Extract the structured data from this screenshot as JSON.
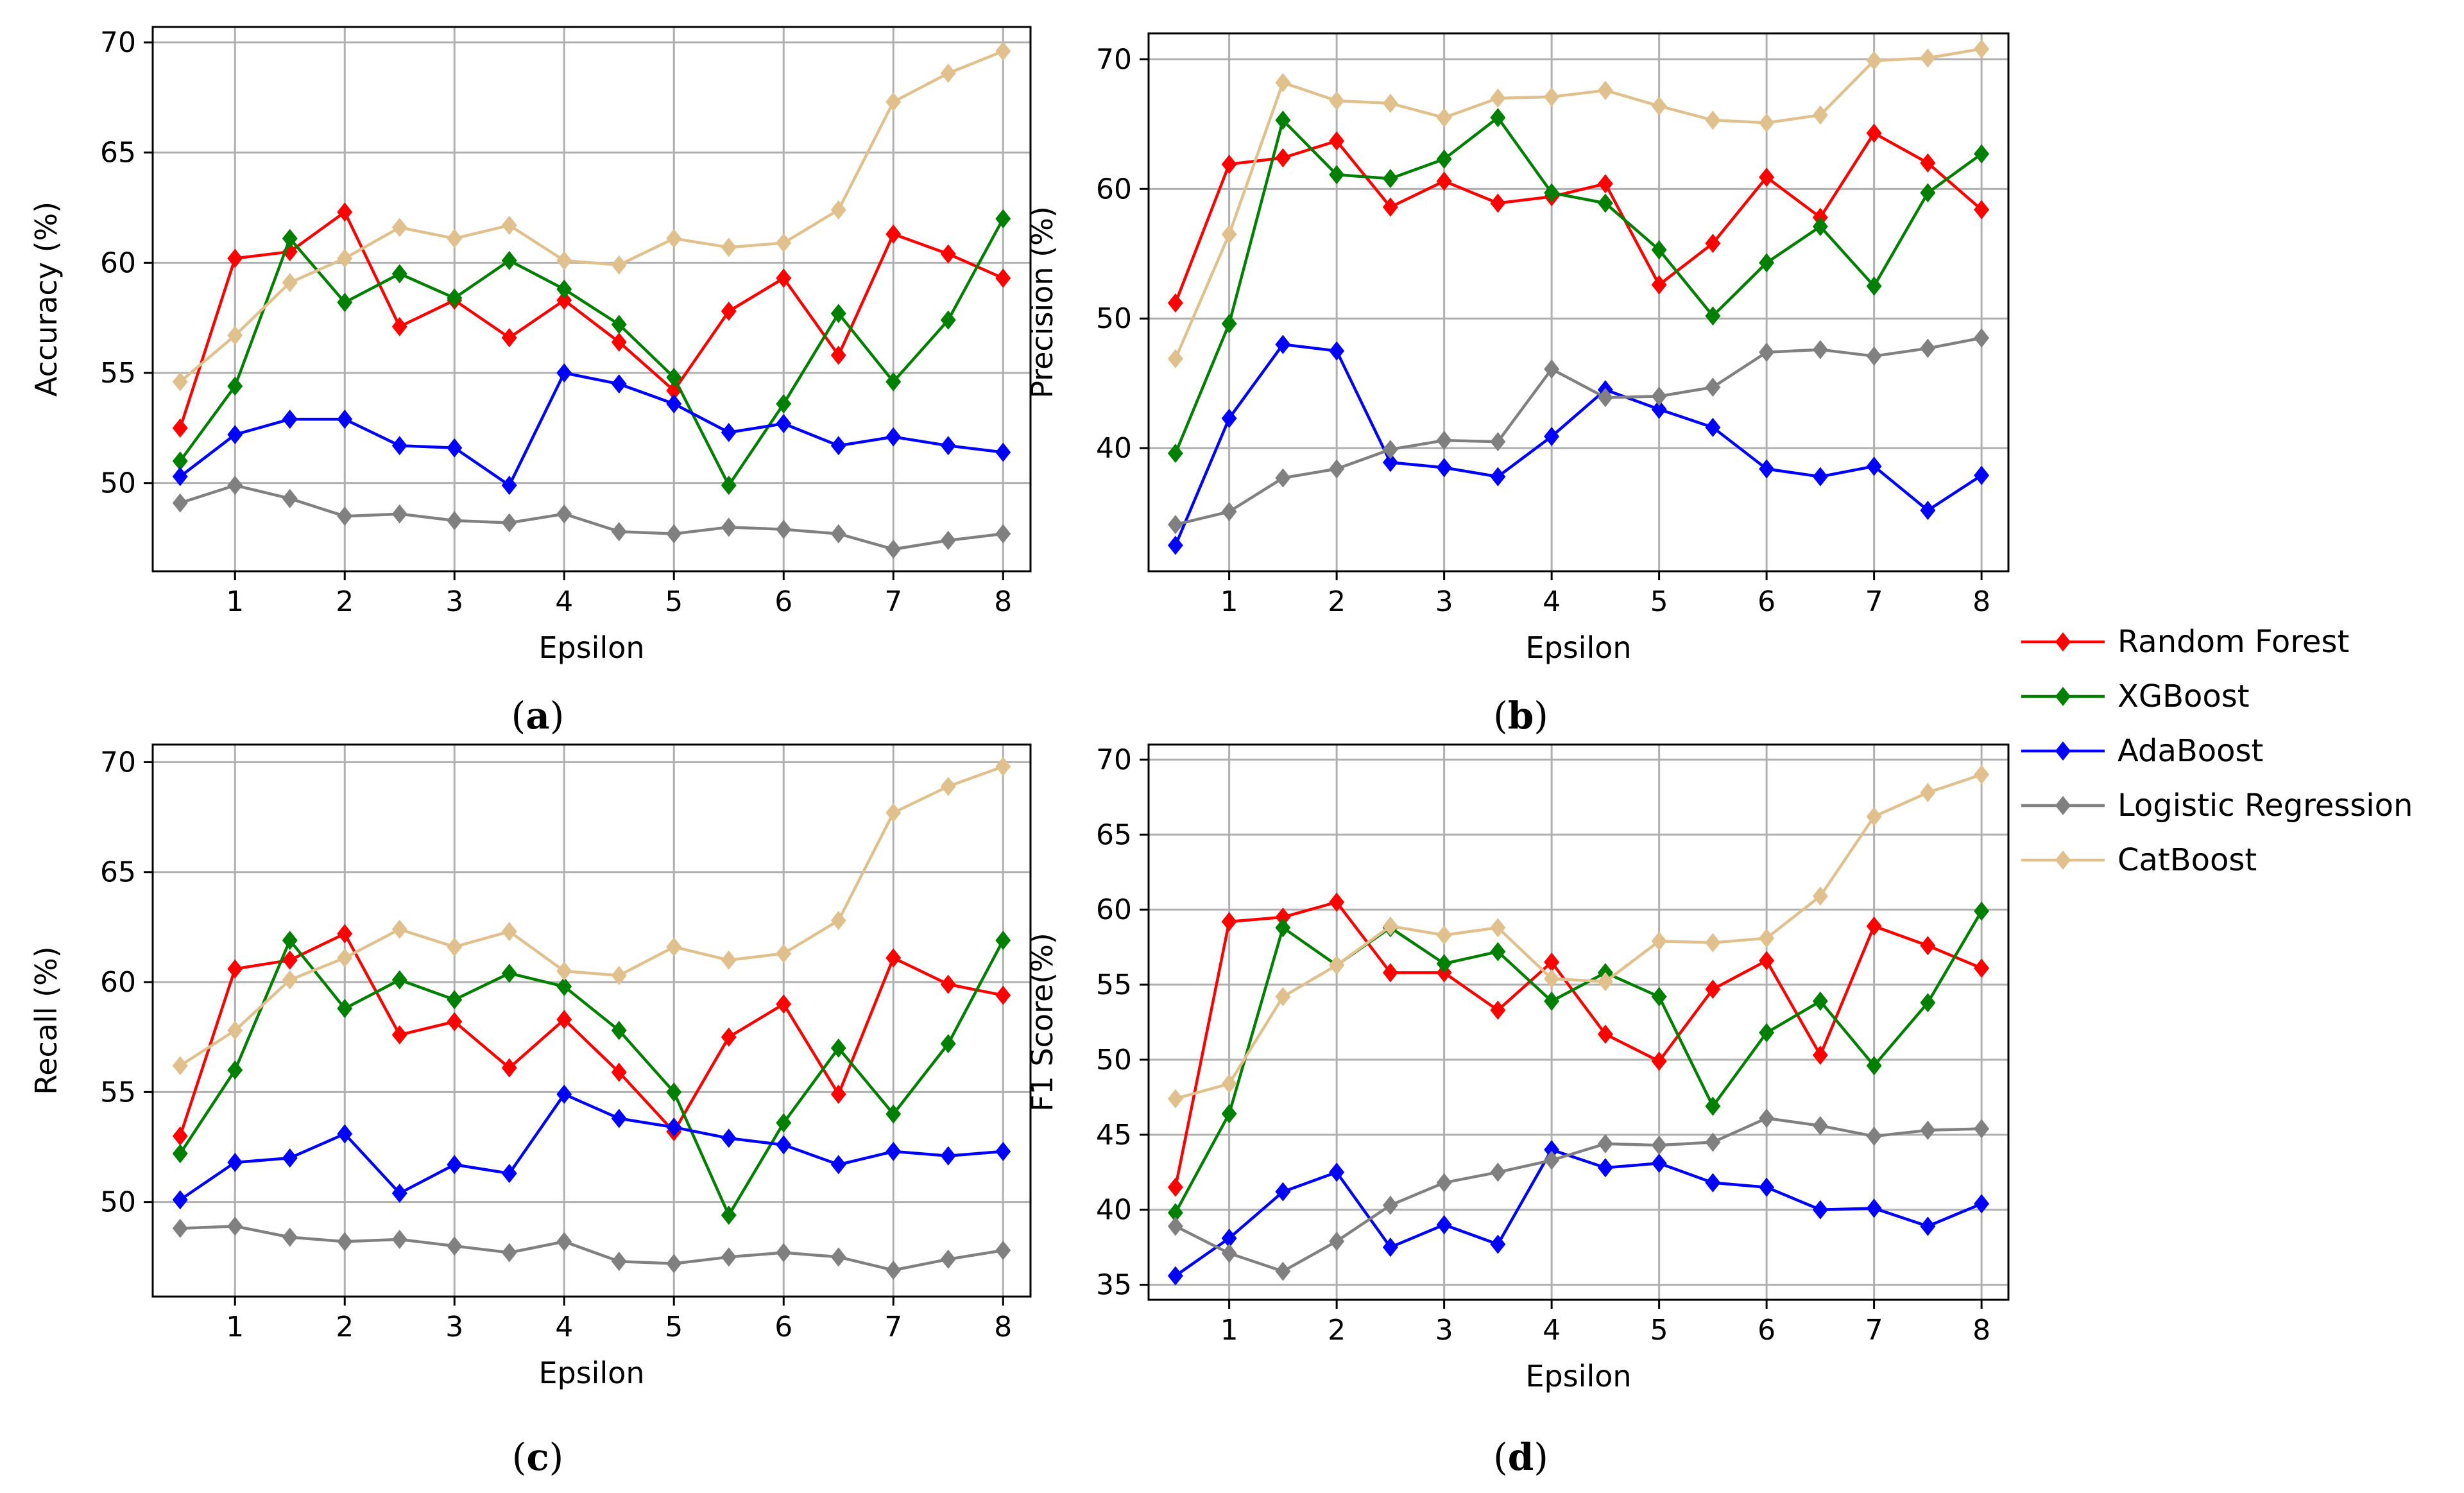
{
  "colors": {
    "Random Forest": "#ff0000",
    "XGBoost": "#008000",
    "AdaBoost": "#0000ff",
    "Logistic Regression": "#808080",
    "CatBoost": "#e0c08c",
    "grid": "#b0b0b0",
    "axis": "#000000"
  },
  "legend": {
    "placement": "right-center",
    "entries": [
      "Random Forest",
      "XGBoost",
      "AdaBoost",
      "Logistic Regression",
      "CatBoost"
    ]
  },
  "chart_data": [
    {
      "type": "line",
      "caption_letter": "a",
      "caption_open": "(",
      "caption_close": ")",
      "xlabel": "Epsilon",
      "ylabel": "Accuracy (%)",
      "xlim": [
        0.25,
        8.25
      ],
      "ylim": [
        46.0,
        70.7
      ],
      "xticks": [
        1,
        2,
        3,
        4,
        5,
        6,
        7,
        8
      ],
      "yticks": [
        50,
        55,
        60,
        65,
        70
      ],
      "grid": true,
      "x": [
        0.5,
        1,
        1.5,
        2,
        2.5,
        3,
        3.5,
        4,
        4.5,
        5,
        5.5,
        6,
        6.5,
        7,
        7.5,
        8
      ],
      "series": [
        {
          "name": "Random Forest",
          "values": [
            52.5,
            60.2,
            60.5,
            62.3,
            57.1,
            58.3,
            56.6,
            58.3,
            56.4,
            54.2,
            57.8,
            59.3,
            55.8,
            61.3,
            60.4,
            59.3
          ]
        },
        {
          "name": "XGBoost",
          "values": [
            51.0,
            54.4,
            61.1,
            58.2,
            59.5,
            58.4,
            60.1,
            58.8,
            57.2,
            54.8,
            49.9,
            53.6,
            57.7,
            54.6,
            57.4,
            62.0
          ]
        },
        {
          "name": "AdaBoost",
          "values": [
            50.3,
            52.2,
            52.9,
            52.9,
            51.7,
            51.6,
            49.9,
            55.0,
            54.5,
            53.6,
            52.3,
            52.7,
            51.7,
            52.1,
            51.7,
            51.4
          ]
        },
        {
          "name": "Logistic Regression",
          "values": [
            49.1,
            49.9,
            49.3,
            48.5,
            48.6,
            48.3,
            48.2,
            48.6,
            47.8,
            47.7,
            48.0,
            47.9,
            47.7,
            47.0,
            47.4,
            47.7
          ]
        },
        {
          "name": "CatBoost",
          "values": [
            54.6,
            56.7,
            59.1,
            60.2,
            61.6,
            61.1,
            61.7,
            60.1,
            59.9,
            61.1,
            60.7,
            60.9,
            62.4,
            67.3,
            68.6,
            69.6
          ]
        }
      ]
    },
    {
      "type": "line",
      "caption_letter": "b",
      "caption_open": "(",
      "caption_close": ")",
      "xlabel": "Epsilon",
      "ylabel": "Precision (%)",
      "xlim": [
        0.25,
        8.25
      ],
      "ylim": [
        30.5,
        72.0
      ],
      "xticks": [
        1,
        2,
        3,
        4,
        5,
        6,
        7,
        8
      ],
      "yticks": [
        40,
        50,
        60,
        70
      ],
      "grid": true,
      "x": [
        0.5,
        1,
        1.5,
        2,
        2.5,
        3,
        3.5,
        4,
        4.5,
        5,
        5.5,
        6,
        6.5,
        7,
        7.5,
        8
      ],
      "series": [
        {
          "name": "Random Forest",
          "values": [
            51.2,
            61.9,
            62.4,
            63.7,
            58.6,
            60.6,
            58.9,
            59.4,
            60.4,
            52.6,
            55.8,
            60.9,
            57.8,
            64.3,
            62.0,
            58.4
          ]
        },
        {
          "name": "XGBoost",
          "values": [
            39.6,
            49.6,
            65.3,
            61.1,
            60.8,
            62.3,
            65.5,
            59.7,
            58.9,
            55.3,
            50.2,
            54.3,
            57.1,
            52.5,
            59.7,
            62.7
          ]
        },
        {
          "name": "AdaBoost",
          "values": [
            32.5,
            42.3,
            48.0,
            47.5,
            38.9,
            38.5,
            37.8,
            40.9,
            44.5,
            43.0,
            41.6,
            38.4,
            37.8,
            38.6,
            35.2,
            37.9
          ]
        },
        {
          "name": "Logistic Regression",
          "values": [
            34.1,
            35.1,
            37.7,
            38.4,
            39.9,
            40.6,
            40.5,
            46.1,
            43.9,
            44.0,
            44.7,
            47.4,
            47.6,
            47.1,
            47.7,
            48.5
          ]
        },
        {
          "name": "CatBoost",
          "values": [
            46.9,
            56.5,
            68.2,
            66.8,
            66.6,
            65.5,
            67.0,
            67.1,
            67.6,
            66.4,
            65.3,
            65.1,
            65.7,
            69.9,
            70.1,
            70.8
          ]
        }
      ]
    },
    {
      "type": "line",
      "caption_letter": "c",
      "caption_open": "(",
      "caption_close": ")",
      "xlabel": "Epsilon",
      "ylabel": "Recall (%)",
      "xlim": [
        0.25,
        8.25
      ],
      "ylim": [
        45.7,
        70.8
      ],
      "xticks": [
        1,
        2,
        3,
        4,
        5,
        6,
        7,
        8
      ],
      "yticks": [
        50,
        55,
        60,
        65,
        70
      ],
      "grid": true,
      "x": [
        0.5,
        1,
        1.5,
        2,
        2.5,
        3,
        3.5,
        4,
        4.5,
        5,
        5.5,
        6,
        6.5,
        7,
        7.5,
        8
      ],
      "series": [
        {
          "name": "Random Forest",
          "values": [
            53.0,
            60.6,
            61.0,
            62.2,
            57.6,
            58.2,
            56.1,
            58.3,
            55.9,
            53.2,
            57.5,
            59.0,
            54.9,
            61.1,
            59.9,
            59.4
          ]
        },
        {
          "name": "XGBoost",
          "values": [
            52.2,
            56.0,
            61.9,
            58.8,
            60.1,
            59.2,
            60.4,
            59.8,
            57.8,
            55.0,
            49.4,
            53.6,
            57.0,
            54.0,
            57.2,
            61.9
          ]
        },
        {
          "name": "AdaBoost",
          "values": [
            50.1,
            51.8,
            52.0,
            53.1,
            50.4,
            51.7,
            51.3,
            54.9,
            53.8,
            53.4,
            52.9,
            52.6,
            51.7,
            52.3,
            52.1,
            52.3
          ]
        },
        {
          "name": "Logistic Regression",
          "values": [
            48.8,
            48.9,
            48.4,
            48.2,
            48.3,
            48.0,
            47.7,
            48.2,
            47.3,
            47.2,
            47.5,
            47.7,
            47.5,
            46.9,
            47.4,
            47.8
          ]
        },
        {
          "name": "CatBoost",
          "values": [
            56.2,
            57.8,
            60.1,
            61.1,
            62.4,
            61.6,
            62.3,
            60.5,
            60.3,
            61.6,
            61.0,
            61.3,
            62.8,
            67.7,
            68.9,
            69.8
          ]
        }
      ]
    },
    {
      "type": "line",
      "caption_letter": "d",
      "caption_open": "(",
      "caption_close": ")",
      "xlabel": "Epsilon",
      "ylabel": "F1 Score(%)",
      "xlim": [
        0.25,
        8.25
      ],
      "ylim": [
        34.0,
        71.0
      ],
      "xticks": [
        1,
        2,
        3,
        4,
        5,
        6,
        7,
        8
      ],
      "yticks": [
        35,
        40,
        45,
        50,
        55,
        60,
        65,
        70
      ],
      "grid": true,
      "x": [
        0.5,
        1,
        1.5,
        2,
        2.5,
        3,
        3.5,
        4,
        4.5,
        5,
        5.5,
        6,
        6.5,
        7,
        7.5,
        8
      ],
      "series": [
        {
          "name": "Random Forest",
          "values": [
            41.5,
            59.2,
            59.5,
            60.5,
            55.8,
            55.8,
            53.3,
            56.5,
            51.7,
            49.9,
            54.7,
            56.6,
            50.3,
            58.9,
            57.6,
            56.1
          ]
        },
        {
          "name": "XGBoost",
          "values": [
            39.8,
            46.4,
            58.8,
            56.3,
            58.8,
            56.4,
            57.2,
            53.9,
            55.8,
            54.2,
            46.9,
            51.8,
            53.9,
            49.6,
            53.8,
            59.9
          ]
        },
        {
          "name": "AdaBoost",
          "values": [
            35.6,
            38.1,
            41.2,
            42.5,
            37.5,
            39.0,
            37.7,
            44.0,
            42.8,
            43.1,
            41.8,
            41.5,
            40.0,
            40.1,
            38.9,
            40.4
          ]
        },
        {
          "name": "Logistic Regression",
          "values": [
            38.9,
            37.1,
            35.9,
            37.9,
            40.3,
            41.8,
            42.5,
            43.3,
            44.4,
            44.3,
            44.5,
            46.1,
            45.6,
            44.9,
            45.3,
            45.4
          ]
        },
        {
          "name": "CatBoost",
          "values": [
            47.4,
            48.4,
            54.2,
            56.3,
            58.9,
            58.3,
            58.8,
            55.4,
            55.2,
            57.9,
            57.8,
            58.1,
            60.9,
            66.2,
            67.8,
            69.0
          ]
        }
      ]
    }
  ]
}
